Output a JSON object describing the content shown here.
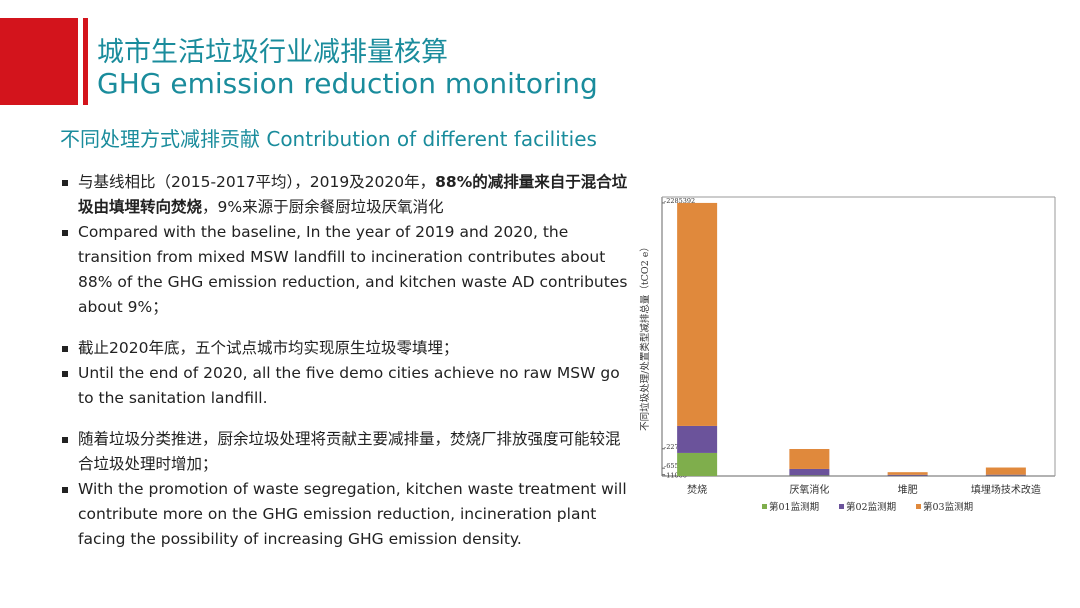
{
  "header": {
    "title_cn": "城市生活垃圾行业减排量核算",
    "title_en": "GHG emission reduction monitoring"
  },
  "subtitle": "不同处理方式减排贡献 Contribution of different facilities",
  "bullets": [
    [
      "与基线相比（2015-2017平均），2019及2020年，",
      "88%的减排量来自于混合垃圾由填埋转向焚烧",
      "，9%来源于厨余餐厨垃圾厌氧消化"
    ],
    [
      "Compared with the baseline, In the year of 2019 and 2020, the transition from mixed MSW landfill to incineration contributes about 88% of the GHG emission reduction, and kitchen waste AD contributes about 9%；"
    ],
    [
      "截止2020年底，五个试点城市均实现原生垃圾零填埋；"
    ],
    [
      "Until the end of 2020, all the five demo cities achieve no raw MSW go to the sanitation landfill."
    ],
    [
      "随着垃圾分类推进，厨余垃圾处理将贡献主要减排量，焚烧厂排放强度可能较混合垃圾处理时增加；"
    ],
    [
      "With the promotion of waste segregation, kitchen waste treatment will contribute more on the GHG emission reduction, incineration plant facing the possibility of increasing GHG emission density."
    ]
  ],
  "chart_data": {
    "type": "stacked-bar",
    "y_label": "不同垃圾处理/处置类型减排总量（tCO2 e）",
    "categories": [
      "焚烧",
      "厌氧消化",
      "堆肥",
      "填埋场技术改造"
    ],
    "series": [
      {
        "name": "第01监测期",
        "color": "#7fae4c",
        "values": [
          -193000,
          -4000,
          -2000,
          -3000
        ]
      },
      {
        "name": "第02监测期",
        "color": "#6b539b",
        "values": [
          -226000,
          -55000,
          -8000,
          -8000
        ]
      },
      {
        "name": "第03监测期",
        "color": "#e0893c",
        "values": [
          -1866392,
          -167000,
          -22000,
          -60000
        ]
      }
    ],
    "ylim": [
      0,
      -2335000
    ],
    "yticks": [
      -2285392,
      -227958,
      -65531,
      -11066
    ]
  }
}
